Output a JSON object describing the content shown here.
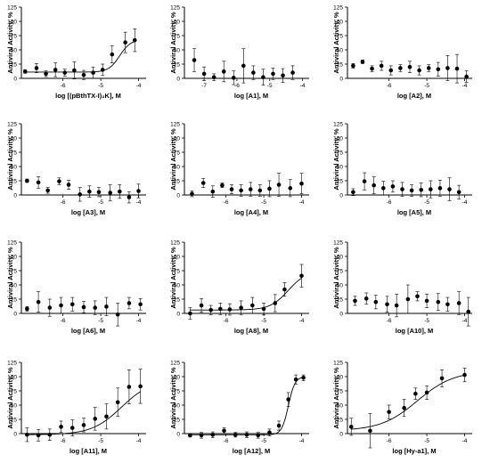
{
  "chart_data": [
    {
      "type": "scatter",
      "ylabel": "Antiviral Activity, %",
      "xlabel": "log [(pBthTX-I)₂K], M",
      "xlim": [
        -7.1,
        -3.8
      ],
      "xticks": [
        -6,
        -5,
        -4
      ],
      "ylim": [
        0,
        125
      ],
      "yticks": [
        0,
        25,
        50,
        75,
        100,
        125
      ],
      "series": [
        {
          "x": [
            -7.0,
            -6.7,
            -6.45,
            -6.2,
            -5.95,
            -5.7,
            -5.45,
            -5.2,
            -4.95,
            -4.7,
            -4.35,
            -4.1
          ],
          "y": [
            12,
            18,
            8,
            15,
            10,
            14,
            6,
            10,
            15,
            42,
            63,
            67
          ],
          "err": [
            3,
            8,
            5,
            12,
            6,
            15,
            8,
            10,
            10,
            15,
            18,
            20
          ],
          "fit": {
            "bottom": 11,
            "top": 68,
            "ec50": -4.5,
            "hill": 3
          }
        }
      ]
    },
    {
      "type": "scatter",
      "ylabel": "Antiviral Activity, %",
      "xlabel": "log [A1], M",
      "xlim": [
        -7.6,
        -3.8
      ],
      "xticks": [
        -7,
        -6,
        -5,
        -4
      ],
      "ylim": [
        0,
        125
      ],
      "yticks": [
        0,
        25,
        50,
        75,
        100,
        125
      ],
      "series": [
        {
          "x": [
            -7.3,
            -7.0,
            -6.7,
            -6.4,
            -6.1,
            -5.8,
            -5.5,
            -5.2,
            -4.9,
            -4.6,
            -4.3
          ],
          "y": [
            32,
            8,
            2,
            12,
            1,
            22,
            10,
            2,
            8,
            5,
            10
          ],
          "err": [
            20,
            12,
            6,
            18,
            12,
            30,
            12,
            14,
            10,
            12,
            12
          ]
        }
      ]
    },
    {
      "type": "scatter",
      "ylabel": "Antiviral Activity, %",
      "xlabel": "log [A2], M",
      "xlim": [
        -7.1,
        -3.8
      ],
      "xticks": [
        -6,
        -5,
        -4
      ],
      "ylim": [
        0,
        125
      ],
      "yticks": [
        0,
        25,
        50,
        75,
        100,
        125
      ],
      "series": [
        {
          "x": [
            -6.95,
            -6.7,
            -6.45,
            -6.2,
            -5.95,
            -5.7,
            -5.45,
            -5.2,
            -4.95,
            -4.7,
            -4.45,
            -4.2,
            -3.95
          ],
          "y": [
            22,
            29,
            17,
            22,
            14,
            18,
            20,
            14,
            18,
            16,
            18,
            17,
            3
          ],
          "err": [
            4,
            3,
            5,
            8,
            8,
            6,
            10,
            8,
            6,
            12,
            22,
            25,
            10
          ]
        }
      ]
    },
    {
      "type": "scatter",
      "ylabel": "Antiviral Activity, %",
      "xlabel": "log [A3], M",
      "xlim": [
        -7.1,
        -3.8
      ],
      "xticks": [
        -6,
        -5,
        -4
      ],
      "ylim": [
        0,
        125
      ],
      "yticks": [
        0,
        25,
        50,
        75,
        100,
        125
      ],
      "series": [
        {
          "x": [
            -6.95,
            -6.65,
            -6.4,
            -6.1,
            -5.85,
            -5.55,
            -5.3,
            -5.05,
            -4.75,
            -4.5,
            -4.25,
            -4.0
          ],
          "y": [
            25,
            22,
            8,
            24,
            18,
            1,
            6,
            5,
            4,
            6,
            -4,
            7
          ],
          "err": [
            3,
            10,
            5,
            6,
            8,
            12,
            10,
            8,
            14,
            12,
            10,
            12
          ]
        }
      ]
    },
    {
      "type": "scatter",
      "ylabel": "Antiviral Activity, %",
      "xlabel": "log [A4], M",
      "xlim": [
        -7.1,
        -3.8
      ],
      "xticks": [
        -6,
        -5,
        -4
      ],
      "ylim": [
        0,
        125
      ],
      "yticks": [
        0,
        25,
        50,
        75,
        100,
        125
      ],
      "series": [
        {
          "x": [
            -6.9,
            -6.6,
            -6.35,
            -6.1,
            -5.85,
            -5.6,
            -5.35,
            -5.1,
            -4.85,
            -4.6,
            -4.3,
            -4.0
          ],
          "y": [
            2,
            21,
            6,
            17,
            10,
            8,
            10,
            8,
            11,
            18,
            12,
            20
          ],
          "err": [
            5,
            8,
            10,
            4,
            8,
            10,
            12,
            10,
            14,
            20,
            15,
            18
          ]
        }
      ]
    },
    {
      "type": "scatter",
      "ylabel": "Antiviral Activity, %",
      "xlabel": "log [A5], M",
      "xlim": [
        -7.1,
        -3.8
      ],
      "xticks": [
        -6,
        -5,
        -4
      ],
      "ylim": [
        0,
        125
      ],
      "yticks": [
        0,
        25,
        50,
        75,
        100,
        125
      ],
      "series": [
        {
          "x": [
            -6.95,
            -6.65,
            -6.4,
            -6.15,
            -5.9,
            -5.65,
            -5.4,
            -5.15,
            -4.9,
            -4.65,
            -4.4,
            -4.15
          ],
          "y": [
            5,
            24,
            17,
            12,
            15,
            10,
            8,
            9,
            10,
            12,
            10,
            5
          ],
          "err": [
            6,
            15,
            15,
            12,
            10,
            12,
            10,
            12,
            15,
            14,
            20,
            12
          ]
        }
      ]
    },
    {
      "type": "scatter",
      "ylabel": "Antiviral Activity, %",
      "xlabel": "log [A6], M",
      "xlim": [
        -7.1,
        -3.8
      ],
      "xticks": [
        -6,
        -5,
        -4
      ],
      "ylim": [
        0,
        125
      ],
      "yticks": [
        0,
        25,
        50,
        75,
        100,
        125
      ],
      "series": [
        {
          "x": [
            -6.95,
            -6.65,
            -6.35,
            -6.05,
            -5.75,
            -5.45,
            -5.15,
            -4.85,
            -4.55,
            -4.25,
            -3.95
          ],
          "y": [
            8,
            20,
            10,
            14,
            16,
            11,
            10,
            12,
            -2,
            18,
            16
          ],
          "err": [
            4,
            18,
            15,
            14,
            12,
            10,
            12,
            16,
            20,
            10,
            10
          ]
        }
      ]
    },
    {
      "type": "scatter",
      "ylabel": "Antiviral Activity, %",
      "xlabel": "log [A8], M",
      "xlim": [
        -7.1,
        -3.8
      ],
      "xticks": [
        -6,
        -5,
        -4
      ],
      "ylim": [
        0,
        125
      ],
      "yticks": [
        0,
        25,
        50,
        75,
        100,
        125
      ],
      "series": [
        {
          "x": [
            -6.95,
            -6.65,
            -6.4,
            -6.15,
            -5.9,
            -5.6,
            -5.3,
            -5.0,
            -4.7,
            -4.45,
            -4.0
          ],
          "y": [
            0,
            14,
            6,
            8,
            7,
            10,
            14,
            8,
            18,
            42,
            66
          ],
          "err": [
            10,
            12,
            8,
            10,
            10,
            12,
            14,
            10,
            15,
            12,
            20
          ],
          "fit": {
            "bottom": 6,
            "top": 75,
            "ec50": -4.35,
            "hill": 1.8
          }
        }
      ]
    },
    {
      "type": "scatter",
      "ylabel": "Antiviral Activity, %",
      "xlabel": "log [A10], M",
      "xlim": [
        -7.1,
        -3.8
      ],
      "xticks": [
        -6,
        -5,
        -4
      ],
      "ylim": [
        0,
        125
      ],
      "yticks": [
        0,
        25,
        50,
        75,
        100,
        125
      ],
      "series": [
        {
          "x": [
            -6.9,
            -6.6,
            -6.35,
            -6.05,
            -5.8,
            -5.5,
            -5.25,
            -5.0,
            -4.7,
            -4.45,
            -4.15,
            -3.9
          ],
          "y": [
            22,
            26,
            20,
            16,
            14,
            25,
            30,
            22,
            20,
            16,
            18,
            3
          ],
          "err": [
            8,
            10,
            12,
            14,
            20,
            25,
            8,
            12,
            15,
            12,
            20,
            25
          ]
        }
      ]
    },
    {
      "type": "scatter",
      "ylabel": "Antiviral Activity, %",
      "xlabel": "log [A11], M",
      "xlim": [
        -7.1,
        -3.8
      ],
      "xticks": [
        -6,
        -5,
        -4
      ],
      "ylim": [
        0,
        125
      ],
      "yticks": [
        0,
        25,
        50,
        75,
        100,
        125
      ],
      "series": [
        {
          "x": [
            -6.95,
            -6.65,
            -6.35,
            -6.05,
            -5.75,
            -5.45,
            -5.15,
            -4.85,
            -4.55,
            -4.25,
            -3.95
          ],
          "y": [
            -2,
            -3,
            -2,
            12,
            10,
            15,
            26,
            30,
            55,
            82,
            83
          ],
          "err": [
            12,
            10,
            10,
            10,
            14,
            12,
            20,
            22,
            25,
            30,
            30
          ],
          "fit": {
            "bottom": -2,
            "top": 95,
            "ec50": -4.45,
            "hill": 1.1
          }
        }
      ]
    },
    {
      "type": "scatter",
      "ylabel": "Antiviral Activity, %",
      "xlabel": "log [A12], M",
      "xlim": [
        -7.1,
        -3.8
      ],
      "xticks": [
        -6,
        -5,
        -4
      ],
      "ylim": [
        0,
        125
      ],
      "yticks": [
        0,
        25,
        50,
        75,
        100,
        125
      ],
      "series": [
        {
          "x": [
            -6.95,
            -6.65,
            -6.35,
            -6.05,
            -5.75,
            -5.45,
            -5.15,
            -4.85,
            -4.6,
            -4.35,
            -4.15,
            -3.95
          ],
          "y": [
            -3,
            -3,
            -2,
            5,
            -2,
            -2,
            -3,
            2,
            14,
            60,
            95,
            98
          ],
          "err": [
            3,
            5,
            5,
            5,
            4,
            5,
            5,
            6,
            8,
            12,
            8,
            5
          ],
          "fit": {
            "bottom": -2,
            "top": 100,
            "ec50": -4.35,
            "hill": 5
          }
        }
      ]
    },
    {
      "type": "scatter",
      "ylabel": "Antiviral Activity, %",
      "xlabel": "log [Hy-a1], M",
      "xlim": [
        -7.1,
        -3.8
      ],
      "xticks": [
        -6,
        -5,
        -4
      ],
      "ylim": [
        0,
        125
      ],
      "yticks": [
        0,
        25,
        50,
        75,
        100,
        125
      ],
      "series": [
        {
          "x": [
            -7.0,
            -6.5,
            -6.0,
            -5.6,
            -5.3,
            -5.0,
            -4.6,
            -4.0
          ],
          "y": [
            12,
            5,
            38,
            45,
            70,
            72,
            97,
            103
          ],
          "err": [
            15,
            30,
            12,
            15,
            10,
            12,
            15,
            12
          ],
          "fit": {
            "bottom": 5,
            "top": 110,
            "ec50": -5.25,
            "hill": 0.9
          }
        }
      ]
    }
  ]
}
